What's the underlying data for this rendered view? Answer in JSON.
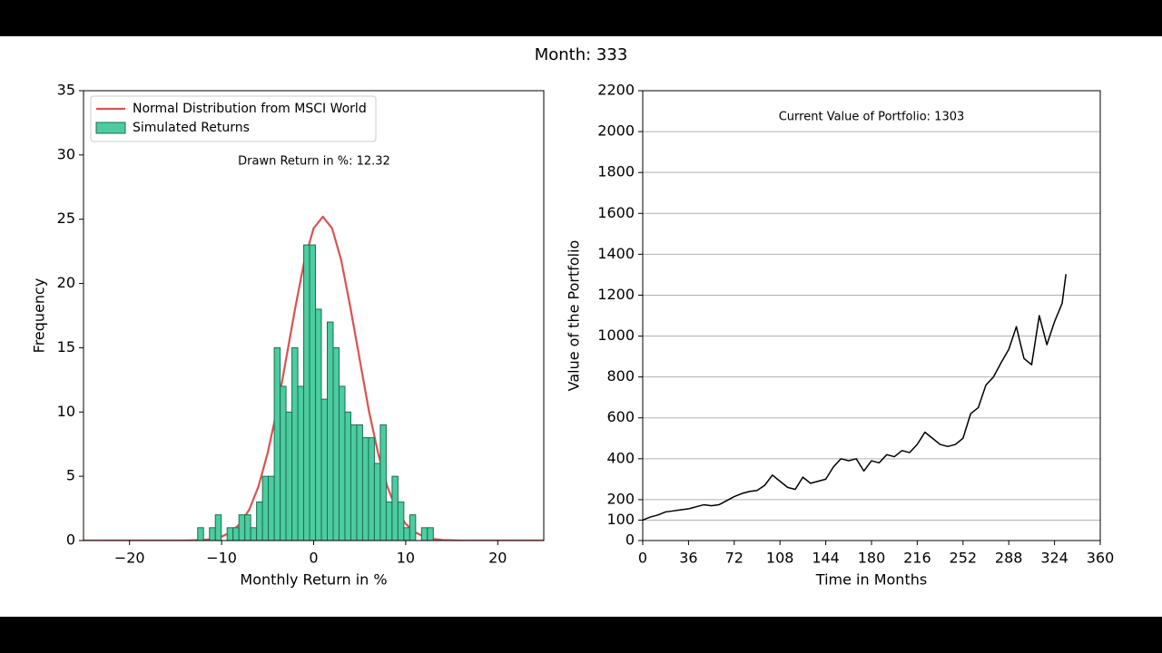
{
  "suptitle": "Month: 333",
  "chart_data": [
    {
      "type": "histogram",
      "xlabel": "Monthly Return in %",
      "ylabel": "Frequency",
      "annotation": "Drawn Return in %: 12.32",
      "xlim": [
        -25,
        25
      ],
      "xticks": [
        {
          "value": -20,
          "label": "−20"
        },
        {
          "value": -10,
          "label": "−10"
        },
        0,
        10,
        20
      ],
      "ylim": [
        0,
        35
      ],
      "yticks": [
        0,
        5,
        10,
        15,
        20,
        25,
        30,
        35
      ],
      "grid": false,
      "legend": "upper left",
      "series": [
        {
          "name": "Normal Distribution from MSCI World",
          "type": "line",
          "color": "#d9534f",
          "x": [
            -25,
            -24,
            -23,
            -22,
            -21,
            -20,
            -19,
            -18,
            -17,
            -16,
            -15,
            -14,
            -13,
            -12,
            -11,
            -10,
            -9,
            -8,
            -7,
            -6,
            -5,
            -4,
            -3,
            -2,
            -1,
            0,
            1,
            2,
            3,
            4,
            5,
            6,
            7,
            8,
            9,
            10,
            11,
            12,
            13,
            14,
            15,
            16,
            17,
            18,
            19,
            20,
            21,
            22,
            23,
            24,
            25
          ],
          "values": [
            0,
            0,
            0,
            0,
            0,
            0,
            0,
            0,
            0,
            0,
            0,
            0,
            0.02,
            0.05,
            0.13,
            0.3,
            0.65,
            1.3,
            2.4,
            4.2,
            6.8,
            10.1,
            14.1,
            18.1,
            21.8,
            24.3,
            25.2,
            24.3,
            21.8,
            18.1,
            14.1,
            10.1,
            6.8,
            4.2,
            2.4,
            1.3,
            0.65,
            0.3,
            0.13,
            0.05,
            0.02,
            0,
            0,
            0,
            0,
            0,
            0,
            0,
            0,
            0,
            0
          ]
        },
        {
          "name": "Simulated Returns",
          "type": "histogram",
          "color": "#4ccc9f",
          "edgecolor": "#1b6e55",
          "bins": [
            -12.6,
            -11.96,
            -11.32,
            -10.68,
            -10.04,
            -9.4,
            -8.76,
            -8.12,
            -7.48,
            -6.84,
            -6.2,
            -5.56,
            -4.92,
            -4.28,
            -3.64,
            -3.0,
            -2.36,
            -1.72,
            -1.08,
            -0.44,
            0.2,
            0.84,
            1.48,
            2.12,
            2.76,
            3.4,
            4.04,
            4.68,
            5.32,
            5.96,
            6.6,
            7.24,
            7.88,
            8.52,
            9.16,
            9.8,
            10.44,
            11.08,
            11.72,
            12.36,
            13.0
          ],
          "values": [
            1,
            0,
            1,
            2,
            0,
            1,
            1,
            2,
            2,
            1,
            3,
            5,
            5,
            15,
            12,
            10,
            15,
            12,
            23,
            23,
            18,
            11,
            17,
            15,
            12,
            10,
            9,
            9,
            8,
            8,
            6,
            9,
            3,
            5,
            3,
            1,
            2,
            0,
            1,
            1
          ]
        }
      ]
    },
    {
      "type": "line",
      "xlabel": "Time in Months",
      "ylabel": "Value of the Portfolio",
      "annotation": "Current Value of Portfolio: 1303",
      "xlim": [
        0,
        360
      ],
      "xticks": [
        0,
        36,
        72,
        108,
        144,
        180,
        216,
        252,
        288,
        324,
        360
      ],
      "ylim": [
        0,
        2200
      ],
      "yticks": [
        0,
        100,
        200,
        400,
        600,
        800,
        1000,
        1200,
        1400,
        1600,
        1800,
        2000,
        2200
      ],
      "grid": true,
      "series": [
        {
          "type": "line",
          "color": "#000000",
          "x": [
            0,
            6,
            12,
            18,
            24,
            30,
            36,
            42,
            48,
            54,
            60,
            66,
            72,
            78,
            84,
            90,
            96,
            102,
            108,
            114,
            120,
            126,
            132,
            138,
            144,
            150,
            156,
            162,
            168,
            174,
            180,
            186,
            192,
            198,
            204,
            210,
            216,
            222,
            228,
            234,
            240,
            246,
            252,
            258,
            264,
            270,
            276,
            282,
            288,
            294,
            300,
            306,
            312,
            318,
            324,
            330,
            333
          ],
          "values": [
            100,
            115,
            125,
            140,
            145,
            150,
            155,
            165,
            175,
            170,
            175,
            195,
            215,
            230,
            240,
            245,
            270,
            320,
            290,
            260,
            250,
            310,
            280,
            290,
            300,
            360,
            400,
            390,
            400,
            340,
            390,
            380,
            420,
            410,
            440,
            430,
            470,
            530,
            500,
            470,
            460,
            470,
            500,
            620,
            650,
            760,
            800,
            870,
            935,
            1046,
            890,
            860,
            1100,
            958,
            1070,
            1160,
            1303
          ]
        }
      ]
    }
  ]
}
